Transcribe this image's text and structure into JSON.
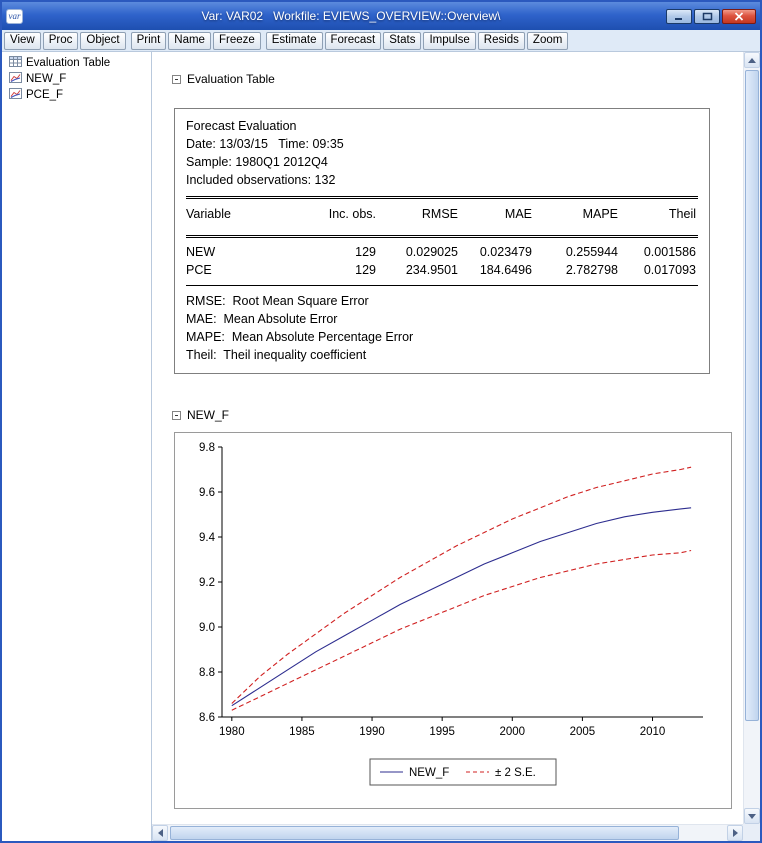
{
  "window": {
    "title": "Var: VAR02   Workfile: EVIEWS_OVERVIEW::Overview\\",
    "app_icon_text": "var"
  },
  "toolbar": {
    "groups": [
      [
        "View",
        "Proc",
        "Object"
      ],
      [
        "Print",
        "Name",
        "Freeze"
      ],
      [
        "Estimate",
        "Forecast",
        "Stats",
        "Impulse",
        "Resids",
        "Zoom"
      ]
    ]
  },
  "sidebar": {
    "items": [
      {
        "label": "Evaluation Table",
        "icon": "table-icon"
      },
      {
        "label": "NEW_F",
        "icon": "graph-icon"
      },
      {
        "label": "PCE_F",
        "icon": "graph-icon"
      }
    ]
  },
  "sections": [
    {
      "header": "Evaluation Table"
    },
    {
      "header": "NEW_F"
    }
  ],
  "evaluation_table": {
    "header_lines": [
      "Forecast Evaluation",
      "Date: 13/03/15   Time: 09:35",
      "Sample: 1980Q1 2012Q4",
      "Included observations: 132"
    ],
    "columns": [
      "Variable",
      "Inc. obs.",
      "RMSE",
      "MAE",
      "MAPE",
      "Theil"
    ],
    "rows": [
      [
        "NEW",
        "129",
        "0.029025",
        "0.023479",
        "0.255944",
        "0.001586"
      ],
      [
        "PCE",
        "129",
        "234.9501",
        "184.6496",
        "2.782798",
        "0.017093"
      ]
    ],
    "footnotes": [
      "RMSE:  Root Mean Square Error",
      "MAE:  Mean Absolute Error",
      "MAPE:  Mean Absolute Percentage Error",
      "Theil:  Theil inequality coefficient"
    ]
  },
  "chart_data": {
    "type": "line",
    "title": "NEW_F",
    "x": [
      1980,
      1982,
      1984,
      1986,
      1988,
      1990,
      1992,
      1994,
      1996,
      1998,
      2000,
      2002,
      2004,
      2006,
      2008,
      2010,
      2012,
      2012.75
    ],
    "series": [
      {
        "name": "NEW_F",
        "color": "#2d2d8f",
        "dashed": false,
        "values": [
          8.65,
          8.73,
          8.81,
          8.89,
          8.96,
          9.03,
          9.1,
          9.16,
          9.22,
          9.28,
          9.33,
          9.38,
          9.42,
          9.46,
          9.49,
          9.51,
          9.525,
          9.53
        ]
      },
      {
        "name": "+2 S.E.",
        "color": "#d02020",
        "dashed": true,
        "values": [
          8.66,
          8.78,
          8.88,
          8.97,
          9.06,
          9.14,
          9.22,
          9.29,
          9.36,
          9.42,
          9.48,
          9.53,
          9.58,
          9.62,
          9.65,
          9.68,
          9.7,
          9.71
        ]
      },
      {
        "name": "-2 S.E.",
        "color": "#d02020",
        "dashed": true,
        "values": [
          8.63,
          8.69,
          8.75,
          8.81,
          8.87,
          8.93,
          8.99,
          9.04,
          9.09,
          9.14,
          9.18,
          9.22,
          9.25,
          9.28,
          9.3,
          9.32,
          9.33,
          9.34
        ]
      }
    ],
    "legend": [
      "NEW_F",
      "± 2 S.E."
    ],
    "xticks": [
      1980,
      1985,
      1990,
      1995,
      2000,
      2005,
      2010
    ],
    "yticks": [
      "8.6",
      "8.8",
      "9.0",
      "9.2",
      "9.4",
      "9.6",
      "9.8"
    ],
    "xlim": [
      1979.3,
      2013.6
    ],
    "ylim": [
      8.6,
      9.8
    ],
    "grid": false,
    "legend_position": "bottom-center"
  }
}
